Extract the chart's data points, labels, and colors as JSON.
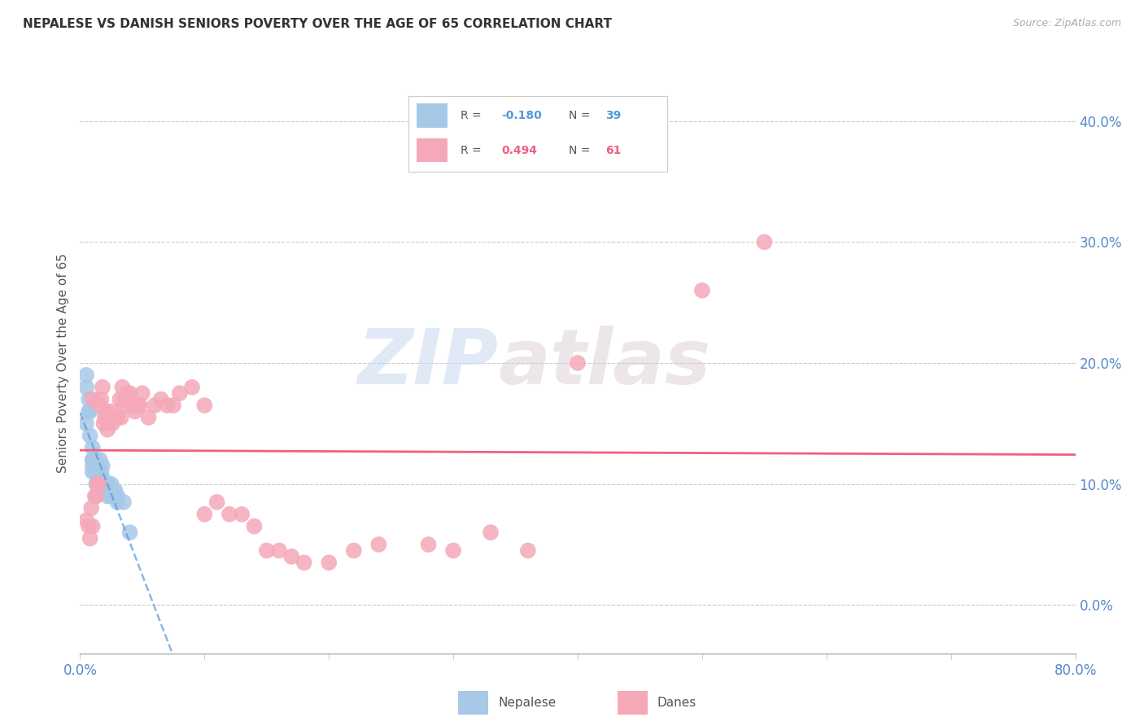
{
  "title": "NEPALESE VS DANISH SENIORS POVERTY OVER THE AGE OF 65 CORRELATION CHART",
  "source": "Source: ZipAtlas.com",
  "ylabel": "Seniors Poverty Over the Age of 65",
  "watermark_zip": "ZIP",
  "watermark_atlas": "atlas",
  "xlim": [
    0.0,
    0.8
  ],
  "ylim": [
    -0.04,
    0.44
  ],
  "xtick_left_label": "0.0%",
  "xtick_right_label": "80.0%",
  "yticks_right": [
    0.0,
    0.1,
    0.2,
    0.3,
    0.4
  ],
  "nepalese_R": -0.18,
  "nepalese_N": 39,
  "danes_R": 0.494,
  "danes_N": 61,
  "nepalese_color": "#a8c8e8",
  "danes_color": "#f4a8b8",
  "nepalese_line_color": "#5599dd",
  "danes_line_color": "#f06080",
  "title_color": "#333333",
  "axis_label_color": "#5588cc",
  "grid_color": "#cccccc",
  "background_color": "#ffffff",
  "nepalese_x": [
    0.005,
    0.005,
    0.005,
    0.007,
    0.007,
    0.008,
    0.008,
    0.01,
    0.01,
    0.01,
    0.01,
    0.01,
    0.012,
    0.012,
    0.013,
    0.013,
    0.014,
    0.014,
    0.015,
    0.015,
    0.016,
    0.016,
    0.017,
    0.017,
    0.018,
    0.018,
    0.019,
    0.02,
    0.02,
    0.022,
    0.022,
    0.025,
    0.025,
    0.027,
    0.028,
    0.03,
    0.03,
    0.035,
    0.04
  ],
  "nepalese_y": [
    0.19,
    0.18,
    0.15,
    0.17,
    0.16,
    0.14,
    0.16,
    0.12,
    0.13,
    0.12,
    0.11,
    0.115,
    0.12,
    0.11,
    0.115,
    0.1,
    0.115,
    0.1,
    0.115,
    0.1,
    0.12,
    0.11,
    0.11,
    0.1,
    0.115,
    0.105,
    0.1,
    0.1,
    0.095,
    0.1,
    0.09,
    0.1,
    0.09,
    0.09,
    0.095,
    0.09,
    0.085,
    0.085,
    0.06
  ],
  "danes_x": [
    0.005,
    0.007,
    0.008,
    0.009,
    0.01,
    0.01,
    0.012,
    0.013,
    0.014,
    0.015,
    0.016,
    0.017,
    0.018,
    0.019,
    0.02,
    0.021,
    0.022,
    0.023,
    0.025,
    0.026,
    0.028,
    0.03,
    0.032,
    0.033,
    0.034,
    0.035,
    0.036,
    0.038,
    0.04,
    0.042,
    0.044,
    0.046,
    0.048,
    0.05,
    0.055,
    0.06,
    0.065,
    0.07,
    0.075,
    0.08,
    0.09,
    0.1,
    0.1,
    0.11,
    0.12,
    0.13,
    0.14,
    0.15,
    0.16,
    0.17,
    0.18,
    0.2,
    0.22,
    0.24,
    0.28,
    0.3,
    0.33,
    0.36,
    0.4,
    0.5,
    0.55
  ],
  "danes_y": [
    0.07,
    0.065,
    0.055,
    0.08,
    0.065,
    0.17,
    0.09,
    0.09,
    0.1,
    0.1,
    0.165,
    0.17,
    0.18,
    0.15,
    0.155,
    0.16,
    0.145,
    0.155,
    0.16,
    0.15,
    0.155,
    0.155,
    0.17,
    0.155,
    0.18,
    0.165,
    0.17,
    0.175,
    0.175,
    0.165,
    0.16,
    0.165,
    0.165,
    0.175,
    0.155,
    0.165,
    0.17,
    0.165,
    0.165,
    0.175,
    0.18,
    0.165,
    0.075,
    0.085,
    0.075,
    0.075,
    0.065,
    0.045,
    0.045,
    0.04,
    0.035,
    0.035,
    0.045,
    0.05,
    0.05,
    0.045,
    0.06,
    0.045,
    0.2,
    0.26,
    0.3
  ]
}
